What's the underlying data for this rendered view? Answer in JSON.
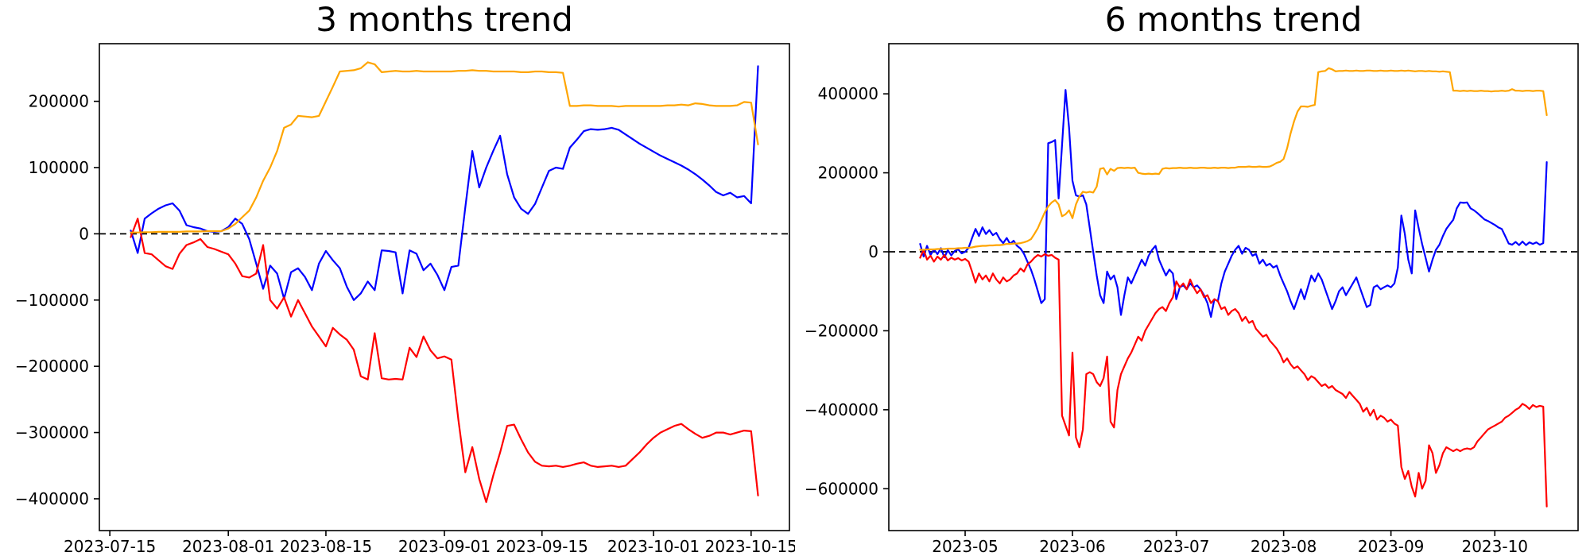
{
  "page": {
    "background": "#ffffff"
  },
  "chart_data": [
    {
      "type": "line",
      "title": "3 months trend",
      "xlabel": "",
      "ylabel": "",
      "grid": false,
      "legend": null,
      "start_date": "2023-07-18",
      "frequency": "daily",
      "xlim_days": [
        -4.5,
        94.5
      ],
      "ylim": [
        -448000,
        287000
      ],
      "y_ticks": [
        200000,
        100000,
        0,
        -100000,
        -200000,
        -300000,
        -400000
      ],
      "x_ticks": [
        {
          "label": "2023-07-15",
          "day": -3
        },
        {
          "label": "2023-08-01",
          "day": 14
        },
        {
          "label": "2023-08-15",
          "day": 28
        },
        {
          "label": "2023-09-01",
          "day": 45
        },
        {
          "label": "2023-09-15",
          "day": 59
        },
        {
          "label": "2023-10-01",
          "day": 75
        },
        {
          "label": "2023-10-15",
          "day": 89
        }
      ],
      "zero_line": {
        "value": 0,
        "style": "dashed",
        "color": "#000000"
      },
      "series": [
        {
          "name": "blue-line",
          "color": "#0000ff",
          "values": [
            5000,
            -29000,
            23000,
            31000,
            38000,
            43000,
            46000,
            35000,
            13000,
            10000,
            8000,
            4000,
            3000,
            4000,
            10000,
            23000,
            15000,
            -8000,
            -45000,
            -83000,
            -48000,
            -60000,
            -98000,
            -58000,
            -52000,
            -65000,
            -85000,
            -45000,
            -26000,
            -40000,
            -52000,
            -80000,
            -100000,
            -90000,
            -72000,
            -85000,
            -25000,
            -26000,
            -28000,
            -90000,
            -25000,
            -30000,
            -55000,
            -45000,
            -62000,
            -85000,
            -50000,
            -48000,
            40000,
            125000,
            70000,
            100000,
            125000,
            148000,
            90000,
            55000,
            38000,
            30000,
            45000,
            70000,
            95000,
            100000,
            98000,
            130000,
            142000,
            155000,
            158000,
            157000,
            158000,
            160000,
            157000,
            150000,
            143000,
            136000,
            130000,
            124000,
            118000,
            113000,
            108000,
            103000,
            97000,
            90000,
            82000,
            73000,
            63000,
            58000,
            62000,
            55000,
            57000,
            46000,
            253000
          ]
        },
        {
          "name": "red-line",
          "color": "#ff0000",
          "values": [
            -5000,
            23000,
            -29000,
            -31000,
            -40000,
            -49000,
            -53000,
            -30000,
            -17000,
            -13000,
            -8000,
            -20000,
            -23000,
            -27000,
            -31000,
            -45000,
            -64000,
            -66000,
            -60000,
            -17000,
            -100000,
            -113000,
            -96000,
            -125000,
            -100000,
            -120000,
            -140000,
            -155000,
            -170000,
            -142000,
            -152000,
            -160000,
            -175000,
            -215000,
            -220000,
            -150000,
            -218000,
            -220000,
            -219000,
            -220000,
            -172000,
            -186000,
            -155000,
            -176000,
            -188000,
            -185000,
            -190000,
            -280000,
            -360000,
            -322000,
            -370000,
            -405000,
            -365000,
            -330000,
            -290000,
            -288000,
            -310000,
            -330000,
            -344000,
            -350000,
            -351000,
            -350000,
            -352000,
            -350000,
            -347000,
            -345000,
            -350000,
            -352000,
            -351000,
            -350000,
            -352000,
            -350000,
            -340000,
            -330000,
            -318000,
            -308000,
            -300000,
            -295000,
            -290000,
            -287000,
            -295000,
            -302000,
            -308000,
            -305000,
            -300000,
            -300000,
            -303000,
            -300000,
            -297000,
            -298000,
            -395000
          ]
        },
        {
          "name": "orange-line",
          "color": "#ffa500",
          "values": [
            2000,
            2000,
            2500,
            2500,
            3000,
            3000,
            3000,
            3000,
            3500,
            3500,
            3500,
            4000,
            4000,
            4000,
            8000,
            15000,
            25000,
            35000,
            55000,
            80000,
            100000,
            125000,
            160000,
            165000,
            178000,
            177000,
            176000,
            178000,
            200000,
            222000,
            245000,
            246000,
            247000,
            250000,
            259000,
            256000,
            244000,
            245000,
            246000,
            245000,
            245000,
            246000,
            245000,
            245000,
            245000,
            245000,
            245000,
            246000,
            246000,
            247000,
            246000,
            246000,
            245000,
            245000,
            245000,
            245000,
            244000,
            244000,
            245000,
            245000,
            244000,
            244000,
            243000,
            193000,
            193000,
            194000,
            194000,
            193000,
            193000,
            193000,
            192000,
            193000,
            193000,
            193000,
            193000,
            193000,
            193000,
            194000,
            194000,
            195000,
            194000,
            197000,
            196000,
            194000,
            193000,
            193000,
            193000,
            194000,
            199000,
            198000,
            135000
          ]
        }
      ]
    },
    {
      "type": "line",
      "title": "6 months trend",
      "xlabel": "",
      "ylabel": "",
      "grid": false,
      "legend": null,
      "start_date": "2023-04-18",
      "frequency": "daily",
      "xlim_days": [
        -9.05,
        190.05
      ],
      "ylim": [
        -706000,
        527000
      ],
      "y_ticks": [
        400000,
        200000,
        0,
        -200000,
        -400000,
        -600000
      ],
      "x_ticks": [
        {
          "label": "2023-05",
          "day": 13
        },
        {
          "label": "2023-06",
          "day": 44
        },
        {
          "label": "2023-07",
          "day": 74
        },
        {
          "label": "2023-08",
          "day": 105
        },
        {
          "label": "2023-09",
          "day": 136
        },
        {
          "label": "2023-10",
          "day": 166
        }
      ],
      "zero_line": {
        "value": 0,
        "style": "dashed",
        "color": "#000000"
      },
      "series": [
        {
          "name": "blue-line",
          "color": "#0000ff",
          "values": [
            20000,
            -12000,
            15000,
            -8000,
            6000,
            -6000,
            9000,
            -14000,
            4000,
            -9000,
            2000,
            6000,
            -4000,
            0,
            10000,
            35000,
            58000,
            40000,
            62000,
            45000,
            55000,
            42000,
            48000,
            32000,
            22000,
            35000,
            20000,
            28000,
            15000,
            8000,
            -5000,
            -25000,
            -45000,
            -70000,
            -100000,
            -130000,
            -120000,
            275000,
            278000,
            283000,
            135000,
            270000,
            410000,
            315000,
            180000,
            143000,
            140000,
            143000,
            120000,
            60000,
            0,
            -60000,
            -110000,
            -130000,
            -50000,
            -70000,
            -60000,
            -90000,
            -160000,
            -110000,
            -65000,
            -80000,
            -60000,
            -40000,
            -20000,
            -35000,
            -10000,
            5000,
            15000,
            -20000,
            -40000,
            -60000,
            -45000,
            -55000,
            -120000,
            -90000,
            -85000,
            -95000,
            -80000,
            -90000,
            -85000,
            -95000,
            -110000,
            -130000,
            -165000,
            -120000,
            -125000,
            -80000,
            -50000,
            -30000,
            -10000,
            5000,
            15000,
            -5000,
            10000,
            5000,
            -10000,
            -5000,
            -30000,
            -20000,
            -35000,
            -30000,
            -40000,
            -35000,
            -60000,
            -80000,
            -100000,
            -125000,
            -145000,
            -120000,
            -95000,
            -120000,
            -90000,
            -60000,
            -75000,
            -55000,
            -70000,
            -95000,
            -120000,
            -145000,
            -125000,
            -100000,
            -90000,
            -110000,
            -95000,
            -80000,
            -65000,
            -90000,
            -115000,
            -140000,
            -135000,
            -90000,
            -85000,
            -95000,
            -90000,
            -85000,
            -90000,
            -80000,
            -40000,
            92000,
            45000,
            -20000,
            -55000,
            105000,
            60000,
            20000,
            -15000,
            -50000,
            -20000,
            5000,
            18000,
            40000,
            58000,
            70000,
            81000,
            110000,
            125000,
            124000,
            125000,
            110000,
            105000,
            98000,
            90000,
            82000,
            78000,
            73000,
            68000,
            62000,
            58000,
            40000,
            21000,
            18000,
            25000,
            17000,
            26000,
            17000,
            24000,
            20000,
            24000,
            18000,
            22000,
            227000
          ]
        },
        {
          "name": "red-line",
          "color": "#ff0000",
          "values": [
            -15000,
            5000,
            -20000,
            -10000,
            -25000,
            -12000,
            -20000,
            -8000,
            -22000,
            -15000,
            -20000,
            -16000,
            -22000,
            -18000,
            -25000,
            -50000,
            -78000,
            -55000,
            -70000,
            -60000,
            -75000,
            -55000,
            -70000,
            -80000,
            -65000,
            -75000,
            -70000,
            -60000,
            -55000,
            -42000,
            -50000,
            -32000,
            -25000,
            -15000,
            -8000,
            -12000,
            -6000,
            -10000,
            -8000,
            -15000,
            -20000,
            -415000,
            -440000,
            -465000,
            -255000,
            -470000,
            -495000,
            -450000,
            -310000,
            -305000,
            -310000,
            -330000,
            -340000,
            -320000,
            -265000,
            -430000,
            -445000,
            -350000,
            -310000,
            -290000,
            -270000,
            -255000,
            -235000,
            -215000,
            -225000,
            -200000,
            -185000,
            -170000,
            -155000,
            -145000,
            -140000,
            -150000,
            -130000,
            -115000,
            -75000,
            -90000,
            -80000,
            -95000,
            -70000,
            -90000,
            -105000,
            -95000,
            -115000,
            -110000,
            -130000,
            -120000,
            -125000,
            -145000,
            -140000,
            -160000,
            -150000,
            -145000,
            -155000,
            -175000,
            -165000,
            -180000,
            -175000,
            -195000,
            -205000,
            -215000,
            -210000,
            -225000,
            -235000,
            -245000,
            -260000,
            -280000,
            -270000,
            -285000,
            -295000,
            -290000,
            -300000,
            -310000,
            -325000,
            -315000,
            -320000,
            -330000,
            -340000,
            -335000,
            -345000,
            -340000,
            -350000,
            -355000,
            -360000,
            -370000,
            -355000,
            -365000,
            -375000,
            -385000,
            -405000,
            -395000,
            -415000,
            -400000,
            -425000,
            -415000,
            -420000,
            -430000,
            -425000,
            -435000,
            -440000,
            -545000,
            -575000,
            -555000,
            -595000,
            -620000,
            -560000,
            -600000,
            -580000,
            -490000,
            -510000,
            -560000,
            -540000,
            -510000,
            -495000,
            -500000,
            -505000,
            -500000,
            -505000,
            -500000,
            -498000,
            -500000,
            -495000,
            -480000,
            -470000,
            -460000,
            -450000,
            -445000,
            -440000,
            -435000,
            -430000,
            -420000,
            -415000,
            -408000,
            -400000,
            -395000,
            -385000,
            -390000,
            -398000,
            -388000,
            -393000,
            -390000,
            -392000,
            -645000
          ]
        },
        {
          "name": "orange-line",
          "color": "#ffa500",
          "values": [
            5000,
            5000,
            6000,
            6000,
            6000,
            7000,
            7000,
            7000,
            8000,
            8000,
            8000,
            9000,
            9000,
            10000,
            10000,
            11000,
            13000,
            14000,
            15000,
            15000,
            16000,
            16000,
            17000,
            17000,
            18000,
            20000,
            20000,
            21000,
            21000,
            22000,
            24000,
            27000,
            32000,
            45000,
            60000,
            80000,
            100000,
            115000,
            125000,
            131000,
            120000,
            90000,
            95000,
            105000,
            85000,
            120000,
            140000,
            152000,
            150000,
            152000,
            150000,
            165000,
            210000,
            212000,
            196000,
            210000,
            205000,
            212000,
            213000,
            212000,
            213000,
            212000,
            213000,
            200000,
            198000,
            197000,
            198000,
            197000,
            198000,
            197000,
            210000,
            212000,
            211000,
            212000,
            212000,
            213000,
            212000,
            212000,
            213000,
            212000,
            212000,
            213000,
            213000,
            212000,
            212000,
            213000,
            212000,
            213000,
            213000,
            212000,
            213000,
            213000,
            215000,
            215000,
            215000,
            216000,
            215000,
            215000,
            216000,
            215000,
            215000,
            216000,
            220000,
            225000,
            228000,
            235000,
            262000,
            300000,
            330000,
            355000,
            368000,
            368000,
            367000,
            370000,
            372000,
            455000,
            457000,
            458000,
            465000,
            462000,
            457000,
            458000,
            458000,
            459000,
            458000,
            458000,
            459000,
            458000,
            458000,
            459000,
            459000,
            458000,
            458000,
            459000,
            458000,
            458000,
            459000,
            458000,
            458000,
            459000,
            458000,
            459000,
            458000,
            457000,
            458000,
            458000,
            457000,
            458000,
            457000,
            457000,
            456000,
            457000,
            456000,
            455000,
            408000,
            408000,
            407000,
            408000,
            407000,
            408000,
            407000,
            407000,
            408000,
            407000,
            407000,
            406000,
            407000,
            407000,
            408000,
            407000,
            408000,
            412000,
            408000,
            408000,
            407000,
            408000,
            408000,
            407000,
            408000,
            408000,
            407000,
            346000
          ]
        }
      ]
    }
  ]
}
